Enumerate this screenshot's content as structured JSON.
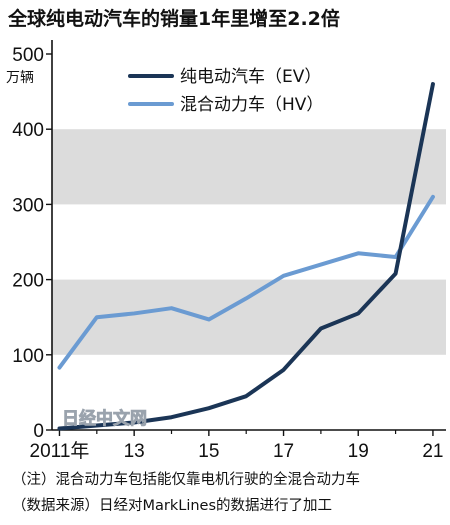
{
  "title": "全球纯电动汽车的销量1年里增至2.2倍",
  "watermark": "日经中文网",
  "notes": [
    "（注）混合动力车包括能仅靠电机行驶的全混合动力车",
    "（数据来源）日经对MarkLines的数据进行了加工"
  ],
  "chart_data": {
    "type": "line",
    "title": "全球纯电动汽车的销量1年里增至2.2倍",
    "ylabel": "万辆",
    "ylim": [
      0,
      500
    ],
    "yticks": [
      "0",
      "100",
      "200",
      "300",
      "400",
      "500"
    ],
    "xlim": [
      2011,
      2021
    ],
    "xticks": [
      {
        "x": 2011,
        "label": "2011年"
      },
      {
        "x": 2013,
        "label": "13"
      },
      {
        "x": 2015,
        "label": "15"
      },
      {
        "x": 2017,
        "label": "17"
      },
      {
        "x": 2019,
        "label": "19"
      },
      {
        "x": 2021,
        "label": "21"
      }
    ],
    "bands": [
      [
        100,
        200
      ],
      [
        300,
        400
      ]
    ],
    "x": [
      2011,
      2012,
      2013,
      2014,
      2015,
      2016,
      2017,
      2018,
      2019,
      2020,
      2021
    ],
    "series": [
      {
        "name": "纯电动汽车（EV）",
        "color": "#1b3556",
        "values": [
          2,
          6,
          10,
          17,
          29,
          45,
          80,
          135,
          155,
          208,
          460
        ]
      },
      {
        "name": "混合动力车（HV）",
        "color": "#6b9bd2",
        "values": [
          83,
          150,
          155,
          162,
          147,
          175,
          205,
          220,
          235,
          230,
          310
        ]
      }
    ],
    "legend": "top-left"
  }
}
